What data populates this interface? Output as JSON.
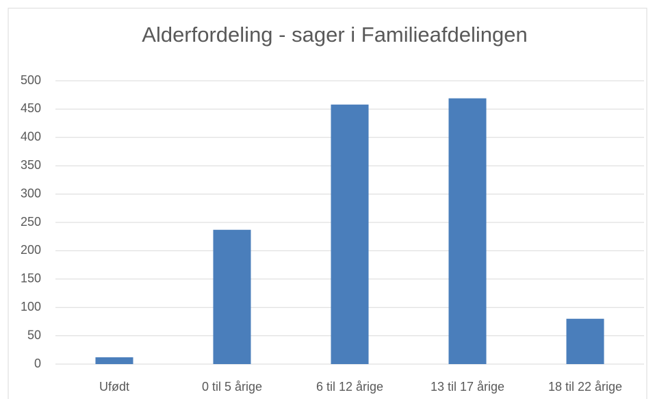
{
  "chart_data": {
    "type": "bar",
    "title": "Alderfordeling - sager i Familieafdelingen",
    "categories": [
      "Ufødt",
      "0 til 5 årige",
      "6 til 12 årige",
      "13 til 17 årige",
      "18 til 22 årige"
    ],
    "values": [
      12,
      237,
      458,
      469,
      80
    ],
    "color": "#4a7ebb",
    "ylim": [
      0,
      500
    ],
    "yticks": [
      0,
      50,
      100,
      150,
      200,
      250,
      300,
      350,
      400,
      450,
      500
    ],
    "grid": true
  }
}
